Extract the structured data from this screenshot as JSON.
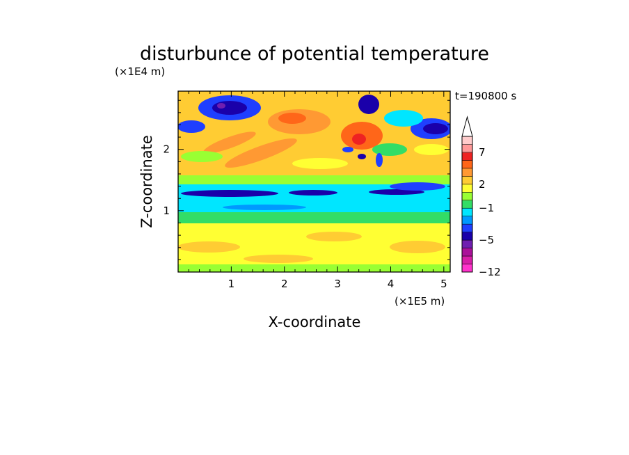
{
  "chart_data": {
    "type": "heatmap",
    "title": "disturbunce of potential temperature",
    "xlabel": "X-coordinate",
    "ylabel": "Z-coordinate",
    "x_unit": "(×1E5 m)",
    "y_unit": "(×1E4 m)",
    "time_label": "t=190800 s",
    "xlim": [
      0,
      5.12
    ],
    "ylim": [
      0,
      2.95
    ],
    "x_ticks": [
      1,
      2,
      3,
      4,
      5
    ],
    "y_ticks": [
      1,
      2
    ],
    "colorbar": {
      "levels": [
        -12,
        -10,
        -8,
        -6,
        -5,
        -4,
        -3,
        -2,
        -1,
        0,
        1,
        2,
        3,
        4,
        5,
        7,
        9,
        11
      ],
      "labeled_ticks": [
        {
          "value": 7,
          "label": "7"
        },
        {
          "value": 2,
          "label": "2"
        },
        {
          "value": -1,
          "label": "−1"
        },
        {
          "value": -5,
          "label": "−5"
        },
        {
          "value": -12,
          "label": "−12"
        }
      ],
      "extend": "max",
      "colors": [
        "#ff33cc",
        "#d81ea8",
        "#aa1199",
        "#6f1fb0",
        "#1a00aa",
        "#1f3fff",
        "#0099ff",
        "#00e6ff",
        "#33dd66",
        "#99ff33",
        "#ffff33",
        "#ffcc33",
        "#ff9933",
        "#ff6619",
        "#ee2222",
        "#ff9999",
        "#ffcccc"
      ]
    }
  }
}
